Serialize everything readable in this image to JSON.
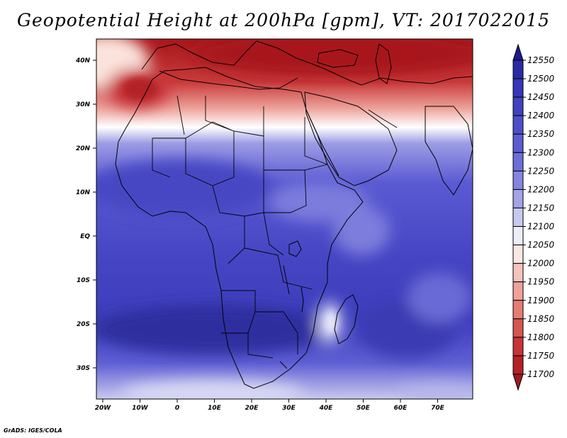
{
  "title": "Geopotential Height at 200hPa [gpm], VT: 2017022015",
  "footer": "GrADS: IGES/COLA",
  "map": {
    "variable": "Geopotential Height",
    "level": "200hPa",
    "units": "gpm",
    "valid_time": "2017022015",
    "region": "Africa",
    "lon_labels": [
      "20W",
      "10W",
      "0",
      "10E",
      "20E",
      "30E",
      "40E",
      "50E",
      "60E",
      "70E"
    ],
    "lat_labels": [
      "40N",
      "30N",
      "20N",
      "10N",
      "EQ",
      "10S",
      "20S",
      "30S"
    ]
  },
  "colorbar": {
    "levels": [
      "12550",
      "12500",
      "12450",
      "12400",
      "12350",
      "12300",
      "12250",
      "12200",
      "12150",
      "12100",
      "12050",
      "12000",
      "11950",
      "11900",
      "11850",
      "11800",
      "11750",
      "11700"
    ],
    "colors": [
      "#1e1a8c",
      "#2a2aa6",
      "#3636b8",
      "#4141c2",
      "#4e4ecb",
      "#5c5cd2",
      "#6e6ed8",
      "#8585df",
      "#a3a3e7",
      "#c9c9f0",
      "#eeeefa",
      "#fbe7e2",
      "#f4c4bd",
      "#eea29a",
      "#e57d76",
      "#d65650",
      "#c6343a",
      "#b42126",
      "#9c1a1c"
    ]
  }
}
